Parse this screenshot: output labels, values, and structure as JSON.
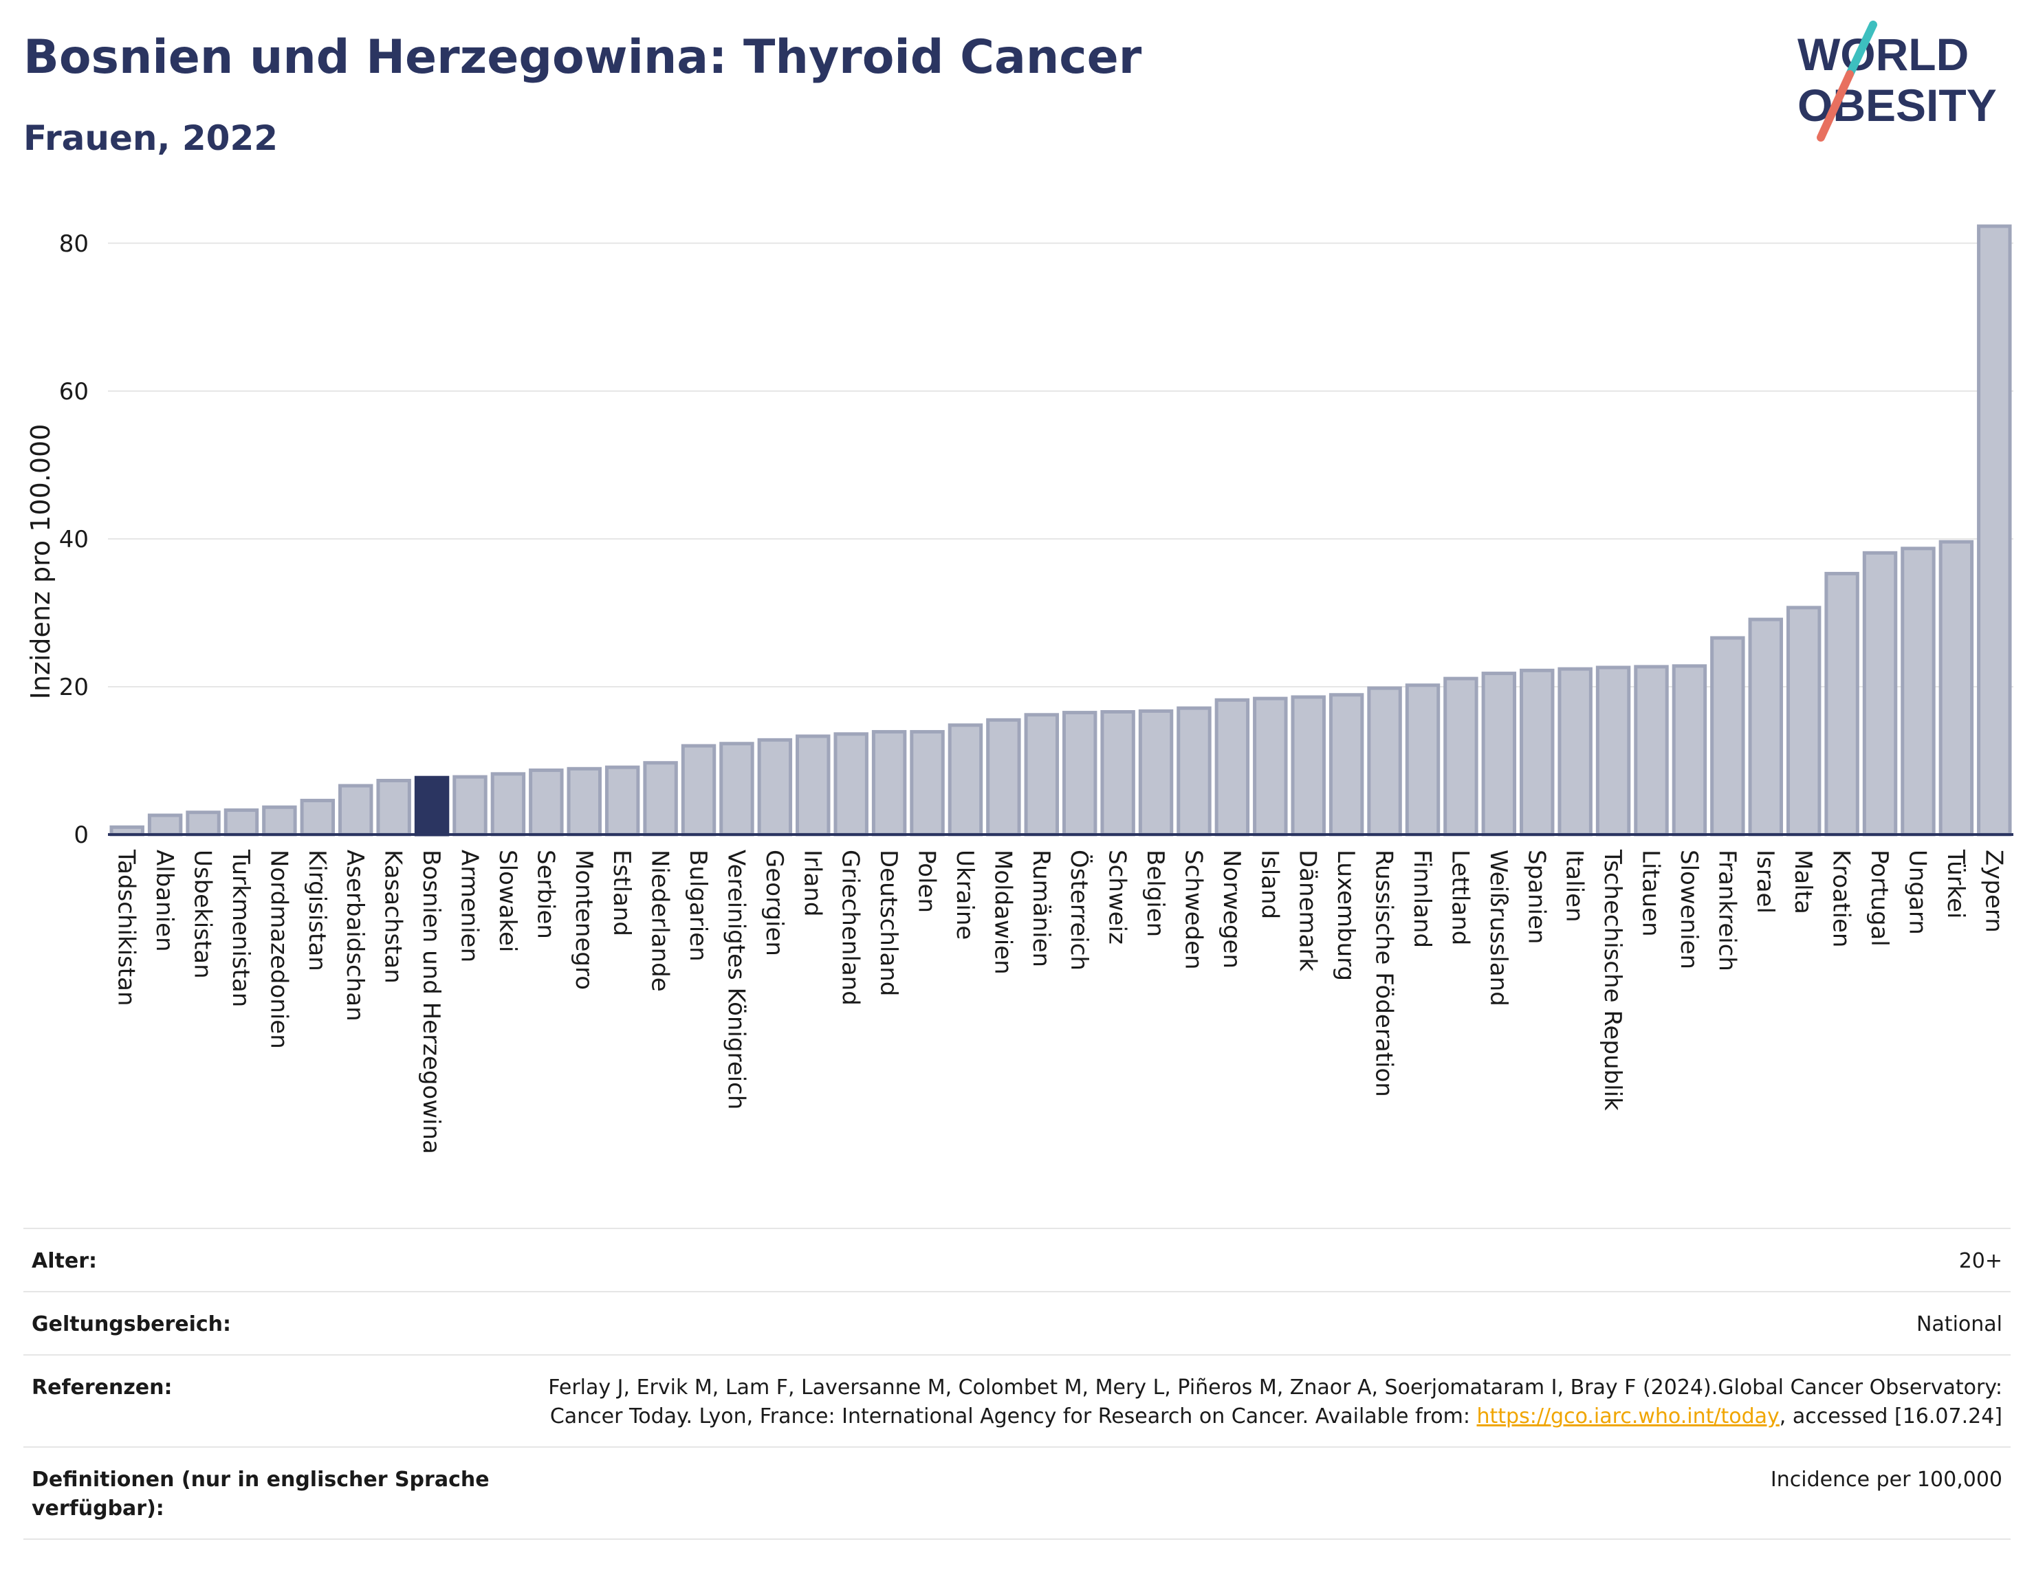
{
  "header": {
    "title": "Bosnien und Herzegowina: Thyroid Cancer",
    "subtitle": "Frauen, 2022"
  },
  "logo": {
    "line1": "WORLD",
    "line2": "OBESITY",
    "colors": {
      "text": "#2b3561",
      "slash_top": "#3dbfbf",
      "slash_bottom": "#e8705f"
    }
  },
  "chart_data": {
    "type": "bar",
    "ylabel": "Inzidenz pro 100.000",
    "xlabel": "",
    "ylim": [
      0,
      85
    ],
    "yticks": [
      0,
      20,
      40,
      60,
      80
    ],
    "grid": true,
    "highlight": "Bosnien und Herzegowina",
    "colors": {
      "bar": "#bfc3d0",
      "bar_edge": "#9fa5ba",
      "highlight": "#2b3561",
      "axis": "#2b3561",
      "grid": "#e6e6e6"
    },
    "categories": [
      "Tadschikistan",
      "Albanien",
      "Usbekistan",
      "Turkmenistan",
      "Nordmazedonien",
      "Kirgisistan",
      "Aserbaidschan",
      "Kasachstan",
      "Bosnien und Herzegowina",
      "Armenien",
      "Slowakei",
      "Serbien",
      "Montenegro",
      "Estland",
      "Niederlande",
      "Bulgarien",
      "Vereinigtes Königreich",
      "Georgien",
      "Irland",
      "Griechenland",
      "Deutschland",
      "Polen",
      "Ukraine",
      "Moldawien",
      "Rumänien",
      "Österreich",
      "Schweiz",
      "Belgien",
      "Schweden",
      "Norwegen",
      "Island",
      "Dänemark",
      "Luxemburg",
      "Russische Föderation",
      "Finnland",
      "Lettland",
      "Weißrussland",
      "Spanien",
      "Italien",
      "Tschechische Republik",
      "Litauen",
      "Slowenien",
      "Frankreich",
      "Israel",
      "Malta",
      "Kroatien",
      "Portugal",
      "Ungarn",
      "Türkei",
      "Zypern"
    ],
    "values": [
      1.0,
      2.6,
      3.0,
      3.3,
      3.7,
      4.6,
      6.6,
      7.3,
      7.7,
      7.8,
      8.2,
      8.7,
      8.9,
      9.1,
      9.7,
      12.0,
      12.3,
      12.8,
      13.3,
      13.6,
      13.9,
      13.9,
      14.8,
      15.5,
      16.2,
      16.5,
      16.6,
      16.7,
      17.1,
      18.2,
      18.4,
      18.6,
      18.9,
      19.8,
      20.2,
      21.1,
      21.8,
      22.2,
      22.4,
      22.6,
      22.7,
      22.8,
      26.6,
      29.1,
      30.7,
      35.3,
      38.1,
      38.7,
      39.6,
      82.3
    ]
  },
  "meta": {
    "rows": [
      {
        "label": "Alter:",
        "value": "20+"
      },
      {
        "label": "Geltungsbereich:",
        "value": "National"
      },
      {
        "label": "Referenzen:",
        "value": "Ferlay J, Ervik M, Lam F, Laversanne M, Colombet M, Mery L, Piñeros M, Znaor A, Soerjomataram I, Bray F (2024).Global Cancer Observatory: Cancer Today. Lyon, France: International Agency for Research on Cancer. Available from: ",
        "link": "https://gco.iarc.who.int/today",
        "suffix": ", accessed [16.07.24]"
      },
      {
        "label": "Definitionen (nur in englischer Sprache verfügbar):",
        "value": "Incidence per 100,000"
      }
    ]
  }
}
